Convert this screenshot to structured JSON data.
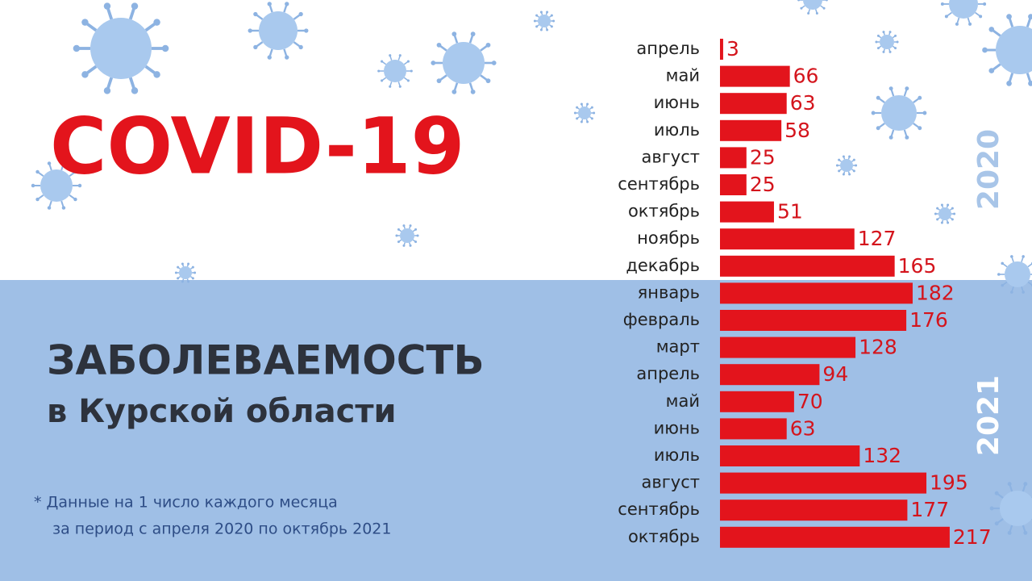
{
  "chart_data": {
    "type": "bar",
    "orientation": "horizontal",
    "title": "COVID-19",
    "subtitle": "ЗАБОЛЕВАЕМОСТЬ",
    "subtitle2": "в Курской области",
    "footnote": [
      "* Данные на 1 число каждого месяца",
      "за период с апреля 2020 по октябрь 2021"
    ],
    "year_labels": [
      "2020",
      "2021"
    ],
    "categories": [
      "апрель",
      "май",
      "июнь",
      "июль",
      "август",
      "сентябрь",
      "октябрь",
      "ноябрь",
      "декабрь",
      "январь",
      "февраль",
      "март",
      "апрель",
      "май",
      "июнь",
      "июль",
      "август",
      "сентябрь",
      "октябрь"
    ],
    "values": [
      3,
      66,
      63,
      58,
      25,
      25,
      51,
      127,
      165,
      182,
      176,
      128,
      94,
      70,
      63,
      132,
      195,
      177,
      217
    ],
    "color": "#e3141c"
  }
}
